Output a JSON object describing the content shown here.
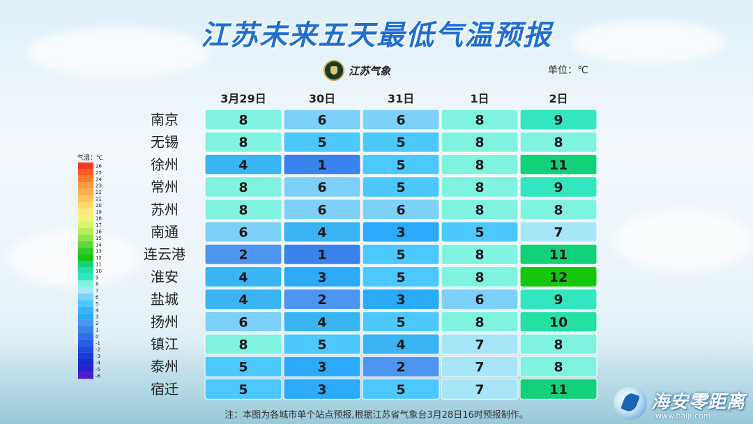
{
  "title": "江苏未来五天最低气温预报",
  "logo_text": "江苏气象",
  "unit_label": "单位：℃",
  "note": "注：本图为各城市单个站点预报,根据江苏省气象台3月28日16时预报制作。",
  "watermark": {
    "name": "海安零距离",
    "url": "www.halji.com"
  },
  "chart_data": {
    "type": "table",
    "title": "江苏未来五天最低气温预报",
    "unit": "℃",
    "columns": [
      "3月29日",
      "30日",
      "31日",
      "1日",
      "2日"
    ],
    "rows": [
      "南京",
      "无锡",
      "徐州",
      "常州",
      "苏州",
      "南通",
      "连云港",
      "淮安",
      "盐城",
      "扬州",
      "镇江",
      "泰州",
      "宿迁"
    ],
    "values": [
      [
        8,
        6,
        6,
        8,
        9
      ],
      [
        8,
        5,
        5,
        8,
        8
      ],
      [
        4,
        1,
        5,
        8,
        11
      ],
      [
        8,
        6,
        5,
        8,
        9
      ],
      [
        8,
        6,
        6,
        8,
        8
      ],
      [
        6,
        4,
        3,
        5,
        7
      ],
      [
        2,
        1,
        5,
        8,
        11
      ],
      [
        4,
        3,
        5,
        8,
        12
      ],
      [
        4,
        2,
        3,
        6,
        9
      ],
      [
        6,
        4,
        5,
        8,
        10
      ],
      [
        8,
        5,
        4,
        7,
        8
      ],
      [
        5,
        3,
        2,
        7,
        8
      ],
      [
        5,
        3,
        5,
        7,
        11
      ]
    ],
    "legend": {
      "title": "气温：℃",
      "levels": [
        26,
        25,
        24,
        23,
        22,
        21,
        20,
        19,
        18,
        17,
        16,
        15,
        14,
        13,
        12,
        11,
        10,
        9,
        8,
        7,
        6,
        5,
        4,
        3,
        2,
        1,
        0,
        -1,
        -2,
        -3,
        -4,
        -5,
        -6
      ],
      "colors": [
        "#f73820",
        "#f85a22",
        "#fa7c2e",
        "#fb9a3e",
        "#fcb04c",
        "#fdc45c",
        "#fed86c",
        "#fde97a",
        "#f2f27a",
        "#d8f46e",
        "#b6ee5a",
        "#8ee44a",
        "#5ed83a",
        "#2fca2a",
        "#16c60c",
        "#11d27a",
        "#24e0a4",
        "#34e6c0",
        "#80f2e0",
        "#a6e6f8",
        "#7dd0f8",
        "#4cc8ff",
        "#3bb4f4",
        "#2aaaf8",
        "#4c96f2",
        "#3a82ec",
        "#2e70e8",
        "#275ee4",
        "#204cdf",
        "#1a3ad8",
        "#1a2ad2",
        "#2a20cc",
        "#4a1fc6"
      ]
    }
  }
}
